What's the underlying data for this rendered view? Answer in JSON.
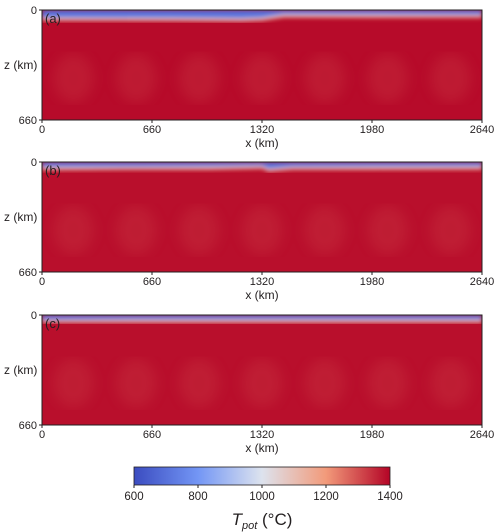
{
  "chart_data": [
    {
      "type": "heatmap",
      "panel_label": "(a)",
      "xlabel": "x (km)",
      "ylabel": "z (km)",
      "xlim": [
        0,
        2640
      ],
      "ylim": [
        660,
        0
      ],
      "x_ticks": [
        "0",
        "660",
        "1320",
        "1980",
        "2640"
      ],
      "y_ticks": [
        "0",
        "660"
      ],
      "lithosphere_thickness_km": [
        [
          0,
          45
        ],
        [
          800,
          47
        ],
        [
          1200,
          50
        ],
        [
          1320,
          45
        ],
        [
          1450,
          26
        ],
        [
          2000,
          27
        ],
        [
          2640,
          28
        ]
      ],
      "mantle_temperature_C": 1390
    },
    {
      "type": "heatmap",
      "panel_label": "(b)",
      "xlabel": "x (km)",
      "ylabel": "z (km)",
      "xlim": [
        0,
        2640
      ],
      "ylim": [
        660,
        0
      ],
      "x_ticks": [
        "0",
        "660",
        "1320",
        "1980",
        "2640"
      ],
      "y_ticks": [
        "0",
        "660"
      ],
      "lithosphere_thickness_km": [
        [
          0,
          30
        ],
        [
          500,
          28
        ],
        [
          1000,
          27
        ],
        [
          1320,
          22
        ],
        [
          1360,
          40
        ],
        [
          1500,
          28
        ],
        [
          2000,
          27
        ],
        [
          2640,
          26
        ]
      ],
      "mantle_temperature_C": 1385
    },
    {
      "type": "heatmap",
      "panel_label": "(c)",
      "xlabel": "x (km)",
      "ylabel": "z (km)",
      "xlim": [
        0,
        2640
      ],
      "ylim": [
        660,
        0
      ],
      "x_ticks": [
        "0",
        "660",
        "1320",
        "1980",
        "2640"
      ],
      "y_ticks": [
        "0",
        "660"
      ],
      "lithosphere_thickness_km": [
        [
          0,
          28
        ],
        [
          660,
          27
        ],
        [
          1320,
          27
        ],
        [
          1980,
          27
        ],
        [
          2640,
          27
        ]
      ],
      "mantle_temperature_C": 1385
    }
  ],
  "colorbar": {
    "label_main": "T",
    "label_sub": "pot",
    "label_unit": " (°C)",
    "ticks": [
      "600",
      "800",
      "1000",
      "1200",
      "1400"
    ],
    "range": [
      600,
      1400
    ],
    "colors": {
      "low": "#3b4cc0",
      "mid": "#dde3ee",
      "high": "#b40426"
    }
  }
}
